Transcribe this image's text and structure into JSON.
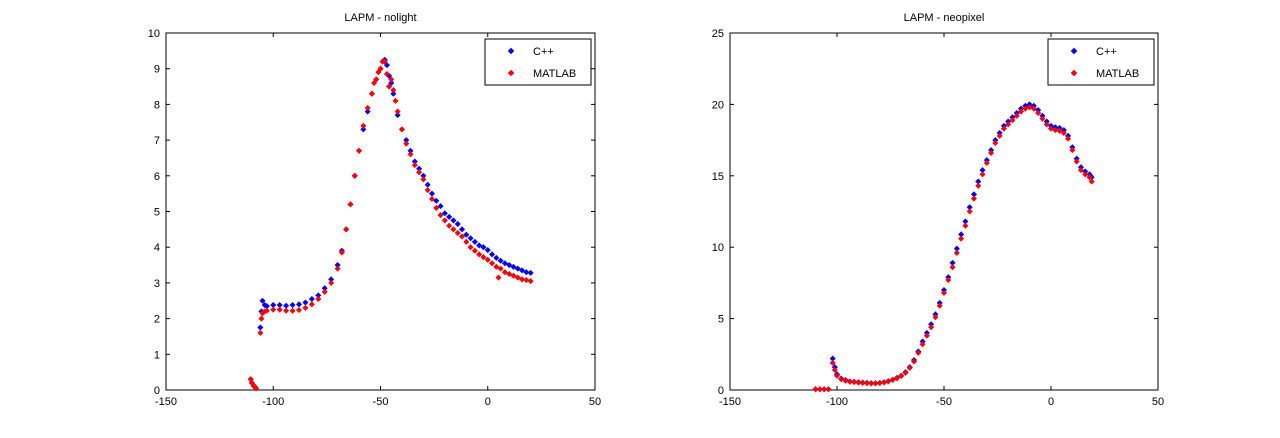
{
  "chart_data": [
    {
      "type": "scatter",
      "title": "LAPM - nolight",
      "xlim": [
        -150,
        50
      ],
      "ylim": [
        0,
        10
      ],
      "xticks": [
        -150,
        -100,
        -50,
        0,
        50
      ],
      "yticks": [
        0,
        1,
        2,
        3,
        4,
        5,
        6,
        7,
        8,
        9,
        10
      ],
      "grid": false,
      "legend_position": "top-right",
      "series": [
        {
          "name": "C++",
          "color": "#0000ff",
          "marker": "diamond",
          "points": [
            [
              -110.5,
              0.3
            ],
            [
              -110,
              0.2
            ],
            [
              -109,
              0.12
            ],
            [
              -108,
              0.05
            ],
            [
              -106,
              1.75
            ],
            [
              -105.5,
              2.2
            ],
            [
              -105,
              2.5
            ],
            [
              -104,
              2.38
            ],
            [
              -103,
              2.35
            ],
            [
              -100,
              2.38
            ],
            [
              -97,
              2.38
            ],
            [
              -94,
              2.36
            ],
            [
              -91,
              2.38
            ],
            [
              -88,
              2.4
            ],
            [
              -85,
              2.45
            ],
            [
              -82,
              2.55
            ],
            [
              -79,
              2.65
            ],
            [
              -76,
              2.85
            ],
            [
              -73,
              3.1
            ],
            [
              -70,
              3.5
            ],
            [
              -68,
              3.9
            ],
            [
              -66,
              4.5
            ],
            [
              -64,
              5.2
            ],
            [
              -62,
              6.0
            ],
            [
              -60,
              6.7
            ],
            [
              -58,
              7.3
            ],
            [
              -56,
              7.8
            ],
            [
              -54,
              8.3
            ],
            [
              -52,
              8.7
            ],
            [
              -50,
              9.0
            ],
            [
              -49,
              9.2
            ],
            [
              -48,
              9.25
            ],
            [
              -47,
              9.1
            ],
            [
              -46,
              8.8
            ],
            [
              -45,
              8.6
            ],
            [
              -44,
              8.3
            ],
            [
              -42,
              7.7
            ],
            [
              -40,
              7.3
            ],
            [
              -38,
              7.0
            ],
            [
              -36,
              6.7
            ],
            [
              -34,
              6.4
            ],
            [
              -32,
              6.2
            ],
            [
              -30,
              6.0
            ],
            [
              -28,
              5.75
            ],
            [
              -26,
              5.5
            ],
            [
              -24,
              5.3
            ],
            [
              -22,
              5.15
            ],
            [
              -20,
              4.95
            ],
            [
              -18,
              4.85
            ],
            [
              -16,
              4.75
            ],
            [
              -14,
              4.65
            ],
            [
              -12,
              4.5
            ],
            [
              -10,
              4.35
            ],
            [
              -8,
              4.25
            ],
            [
              -6,
              4.15
            ],
            [
              -4,
              4.05
            ],
            [
              -2,
              4.0
            ],
            [
              0,
              3.92
            ],
            [
              2,
              3.8
            ],
            [
              4,
              3.7
            ],
            [
              6,
              3.62
            ],
            [
              8,
              3.55
            ],
            [
              10,
              3.5
            ],
            [
              12,
              3.45
            ],
            [
              14,
              3.4
            ],
            [
              16,
              3.35
            ],
            [
              18,
              3.3
            ],
            [
              20,
              3.28
            ]
          ]
        },
        {
          "name": "MATLAB",
          "color": "#ff0000",
          "marker": "diamond",
          "points": [
            [
              -110.5,
              0.3
            ],
            [
              -110,
              0.2
            ],
            [
              -109,
              0.1
            ],
            [
              -108,
              0.05
            ],
            [
              -106,
              1.6
            ],
            [
              -105.5,
              2.0
            ],
            [
              -105,
              2.15
            ],
            [
              -104,
              2.2
            ],
            [
              -103,
              2.22
            ],
            [
              -100,
              2.25
            ],
            [
              -97,
              2.25
            ],
            [
              -94,
              2.22
            ],
            [
              -91,
              2.22
            ],
            [
              -88,
              2.24
            ],
            [
              -85,
              2.3
            ],
            [
              -82,
              2.4
            ],
            [
              -79,
              2.55
            ],
            [
              -76,
              2.75
            ],
            [
              -73,
              3.0
            ],
            [
              -70,
              3.4
            ],
            [
              -68,
              3.85
            ],
            [
              -66,
              4.5
            ],
            [
              -64,
              5.2
            ],
            [
              -62,
              6.0
            ],
            [
              -60,
              6.7
            ],
            [
              -58,
              7.4
            ],
            [
              -56,
              7.9
            ],
            [
              -54,
              8.3
            ],
            [
              -53,
              8.6
            ],
            [
              -52,
              8.7
            ],
            [
              -51,
              8.9
            ],
            [
              -50,
              9.0
            ],
            [
              -49,
              9.2
            ],
            [
              -48,
              9.2
            ],
            [
              -47,
              8.85
            ],
            [
              -46,
              8.5
            ],
            [
              -45,
              8.7
            ],
            [
              -44,
              8.4
            ],
            [
              -43,
              8.1
            ],
            [
              -42,
              7.8
            ],
            [
              -40,
              7.3
            ],
            [
              -38,
              6.9
            ],
            [
              -36,
              6.6
            ],
            [
              -34,
              6.3
            ],
            [
              -32,
              6.1
            ],
            [
              -30,
              5.9
            ],
            [
              -28,
              5.6
            ],
            [
              -26,
              5.35
            ],
            [
              -24,
              5.1
            ],
            [
              -22,
              4.9
            ],
            [
              -20,
              4.75
            ],
            [
              -18,
              4.6
            ],
            [
              -16,
              4.5
            ],
            [
              -14,
              4.4
            ],
            [
              -12,
              4.3
            ],
            [
              -10,
              4.15
            ],
            [
              -8,
              4.0
            ],
            [
              -6,
              3.9
            ],
            [
              -4,
              3.8
            ],
            [
              -2,
              3.72
            ],
            [
              0,
              3.65
            ],
            [
              2,
              3.55
            ],
            [
              4,
              3.45
            ],
            [
              5,
              3.15
            ],
            [
              6,
              3.4
            ],
            [
              8,
              3.3
            ],
            [
              10,
              3.25
            ],
            [
              12,
              3.2
            ],
            [
              14,
              3.15
            ],
            [
              16,
              3.1
            ],
            [
              18,
              3.08
            ],
            [
              20,
              3.05
            ]
          ]
        }
      ]
    },
    {
      "type": "scatter",
      "title": "LAPM - neopixel",
      "xlim": [
        -150,
        50
      ],
      "ylim": [
        0,
        25
      ],
      "xticks": [
        -150,
        -100,
        -50,
        0,
        50
      ],
      "yticks": [
        0,
        5,
        10,
        15,
        20,
        25
      ],
      "grid": false,
      "legend_position": "top-right",
      "series": [
        {
          "name": "C++",
          "color": "#0000ff",
          "marker": "diamond",
          "points": [
            [
              -110,
              0.05
            ],
            [
              -108,
              0.05
            ],
            [
              -106,
              0.05
            ],
            [
              -104,
              0.05
            ],
            [
              -102,
              2.2
            ],
            [
              -101,
              1.6
            ],
            [
              -100,
              1.1
            ],
            [
              -98,
              0.8
            ],
            [
              -96,
              0.7
            ],
            [
              -94,
              0.6
            ],
            [
              -92,
              0.58
            ],
            [
              -90,
              0.55
            ],
            [
              -88,
              0.52
            ],
            [
              -86,
              0.5
            ],
            [
              -84,
              0.48
            ],
            [
              -82,
              0.48
            ],
            [
              -80,
              0.5
            ],
            [
              -78,
              0.55
            ],
            [
              -76,
              0.62
            ],
            [
              -74,
              0.72
            ],
            [
              -72,
              0.85
            ],
            [
              -70,
              1.0
            ],
            [
              -68,
              1.25
            ],
            [
              -66,
              1.6
            ],
            [
              -64,
              2.1
            ],
            [
              -62,
              2.7
            ],
            [
              -60,
              3.4
            ],
            [
              -58,
              4.0
            ],
            [
              -56,
              4.6
            ],
            [
              -54,
              5.3
            ],
            [
              -52,
              6.1
            ],
            [
              -50,
              7.0
            ],
            [
              -48,
              7.9
            ],
            [
              -46,
              8.9
            ],
            [
              -44,
              9.9
            ],
            [
              -42,
              10.9
            ],
            [
              -40,
              11.8
            ],
            [
              -38,
              12.8
            ],
            [
              -36,
              13.7
            ],
            [
              -34,
              14.6
            ],
            [
              -32,
              15.4
            ],
            [
              -30,
              16.1
            ],
            [
              -28,
              16.8
            ],
            [
              -26,
              17.5
            ],
            [
              -24,
              18.0
            ],
            [
              -22,
              18.5
            ],
            [
              -20,
              18.8
            ],
            [
              -18,
              19.1
            ],
            [
              -16,
              19.4
            ],
            [
              -14,
              19.7
            ],
            [
              -12,
              19.9
            ],
            [
              -10,
              20.0
            ],
            [
              -8,
              19.9
            ],
            [
              -6,
              19.6
            ],
            [
              -4,
              19.2
            ],
            [
              -2,
              18.8
            ],
            [
              0,
              18.5
            ],
            [
              2,
              18.4
            ],
            [
              4,
              18.35
            ],
            [
              6,
              18.2
            ],
            [
              8,
              17.8
            ],
            [
              10,
              17.0
            ],
            [
              12,
              16.2
            ],
            [
              14,
              15.6
            ],
            [
              16,
              15.3
            ],
            [
              18,
              15.1
            ],
            [
              19,
              14.9
            ]
          ]
        },
        {
          "name": "MATLAB",
          "color": "#ff0000",
          "marker": "diamond",
          "points": [
            [
              -110,
              0.05
            ],
            [
              -108,
              0.05
            ],
            [
              -106,
              0.05
            ],
            [
              -104,
              0.05
            ],
            [
              -102,
              1.9
            ],
            [
              -101,
              1.4
            ],
            [
              -100,
              1.0
            ],
            [
              -98,
              0.75
            ],
            [
              -96,
              0.65
            ],
            [
              -94,
              0.58
            ],
            [
              -92,
              0.55
            ],
            [
              -90,
              0.52
            ],
            [
              -88,
              0.5
            ],
            [
              -86,
              0.48
            ],
            [
              -84,
              0.46
            ],
            [
              -82,
              0.46
            ],
            [
              -80,
              0.48
            ],
            [
              -78,
              0.53
            ],
            [
              -76,
              0.6
            ],
            [
              -74,
              0.7
            ],
            [
              -72,
              0.82
            ],
            [
              -70,
              0.98
            ],
            [
              -68,
              1.2
            ],
            [
              -66,
              1.55
            ],
            [
              -64,
              2.0
            ],
            [
              -62,
              2.6
            ],
            [
              -60,
              3.2
            ],
            [
              -58,
              3.8
            ],
            [
              -56,
              4.4
            ],
            [
              -54,
              5.1
            ],
            [
              -52,
              5.9
            ],
            [
              -50,
              6.8
            ],
            [
              -48,
              7.7
            ],
            [
              -46,
              8.6
            ],
            [
              -44,
              9.6
            ],
            [
              -42,
              10.6
            ],
            [
              -40,
              11.5
            ],
            [
              -38,
              12.5
            ],
            [
              -36,
              13.4
            ],
            [
              -34,
              14.3
            ],
            [
              -32,
              15.1
            ],
            [
              -30,
              15.9
            ],
            [
              -28,
              16.6
            ],
            [
              -26,
              17.3
            ],
            [
              -24,
              17.8
            ],
            [
              -22,
              18.3
            ],
            [
              -20,
              18.6
            ],
            [
              -18,
              18.9
            ],
            [
              -16,
              19.2
            ],
            [
              -14,
              19.5
            ],
            [
              -12,
              19.7
            ],
            [
              -10,
              19.8
            ],
            [
              -8,
              19.7
            ],
            [
              -6,
              19.4
            ],
            [
              -4,
              19.0
            ],
            [
              -2,
              18.6
            ],
            [
              0,
              18.3
            ],
            [
              2,
              18.2
            ],
            [
              4,
              18.15
            ],
            [
              6,
              18.0
            ],
            [
              8,
              17.6
            ],
            [
              10,
              16.8
            ],
            [
              12,
              16.0
            ],
            [
              14,
              15.4
            ],
            [
              16,
              15.1
            ],
            [
              18,
              14.9
            ],
            [
              19,
              14.6
            ]
          ]
        }
      ]
    }
  ]
}
